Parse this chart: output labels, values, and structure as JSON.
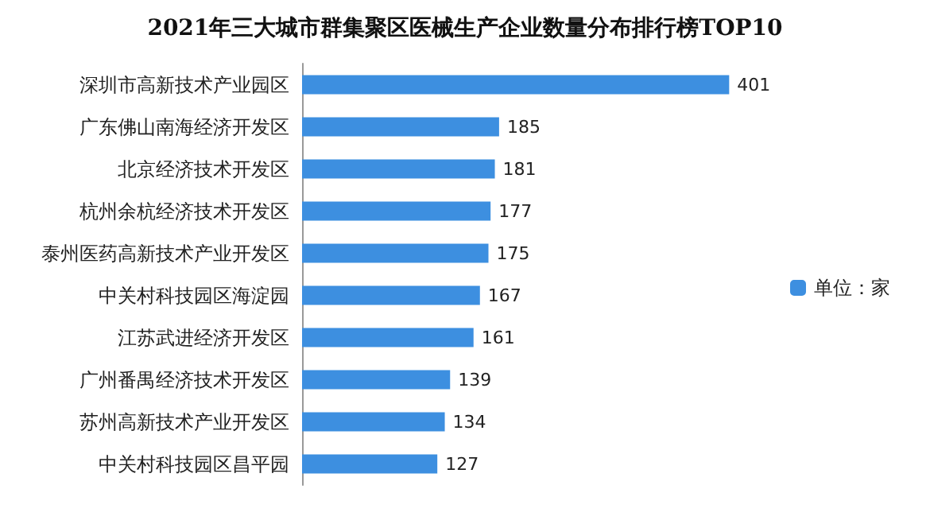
{
  "chart_data": {
    "type": "bar",
    "orientation": "horizontal",
    "title": "2021年三大城市群集聚区医械生产企业数量分布排行榜TOP10",
    "categories": [
      "深圳市高新技术产业园区",
      "广东佛山南海经济开发区",
      "北京经济技术开发区",
      "杭州余杭经济技术开发区",
      "泰州医药高新技术产业开发区",
      "中关村科技园区海淀园",
      "江苏武进经济开发区",
      "广州番禺经济技术开发区",
      "苏州高新技术产业开发区",
      "中关村科技园区昌平园"
    ],
    "series": [
      {
        "name": "单位：家",
        "color": "#3d8fe0",
        "values": [
          401,
          185,
          181,
          177,
          175,
          167,
          161,
          139,
          134,
          127
        ]
      }
    ],
    "data_labels": true,
    "legend": "right",
    "tick_labels": "y"
  }
}
